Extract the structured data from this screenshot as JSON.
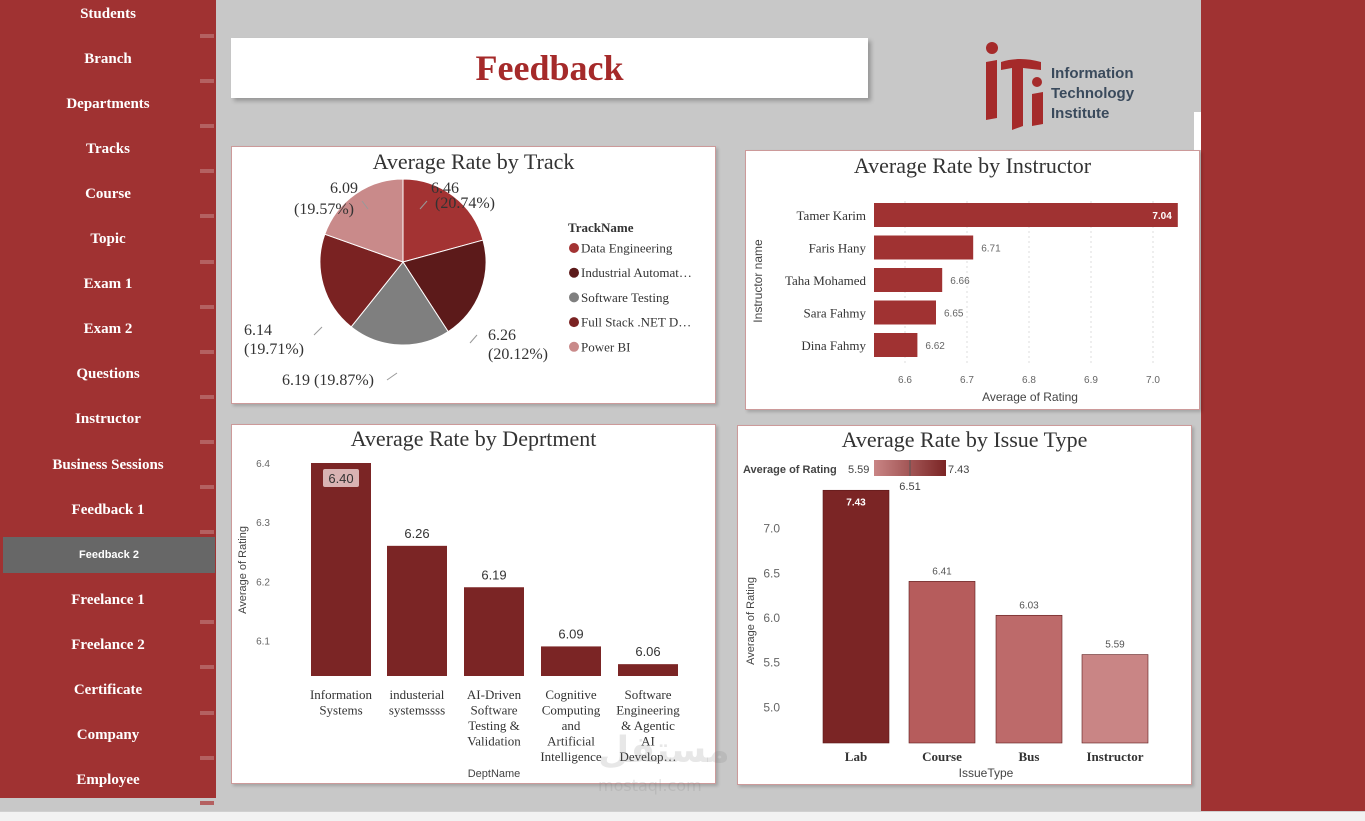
{
  "sidebar": {
    "items": [
      {
        "label": "Students"
      },
      {
        "label": "Branch"
      },
      {
        "label": "Departments"
      },
      {
        "label": "Tracks"
      },
      {
        "label": "Course"
      },
      {
        "label": "Topic"
      },
      {
        "label": "Exam 1"
      },
      {
        "label": "Exam 2"
      },
      {
        "label": "Questions"
      },
      {
        "label": "Instructor"
      },
      {
        "label": "Business Sessions"
      },
      {
        "label": "Feedback 1"
      },
      {
        "label": "Feedback 2",
        "active": true
      },
      {
        "label": "Freelance 1"
      },
      {
        "label": "Freelance 2"
      },
      {
        "label": "Certificate"
      },
      {
        "label": "Company"
      },
      {
        "label": "Employee"
      }
    ]
  },
  "header": {
    "title": "Feedback"
  },
  "logo": {
    "line1": "Information",
    "line2": "Technology",
    "line3": "Institute"
  },
  "colors": {
    "brand": "#a03232",
    "dark_red": "#7b2525",
    "accent": "#a52a2a"
  },
  "chart_data": [
    {
      "type": "pie",
      "title": "Average Rate by Track",
      "legend_title": "TrackName",
      "legend_position": "right",
      "slices": [
        {
          "name": "Data Engineering",
          "legend_label": "Data Engineering",
          "value": 6.46,
          "label": "6.46",
          "pct": "(20.74%)",
          "color": "#a33333"
        },
        {
          "name": "Industrial Automation",
          "legend_label": "Industrial Automat…",
          "value": 6.26,
          "label": "6.26",
          "pct": "(20.12%)",
          "color": "#5c1a1a"
        },
        {
          "name": "Software Testing",
          "legend_label": "Software Testing",
          "value": 6.19,
          "label": "6.19 (19.87%)",
          "pct": "",
          "color": "#7f7f7f"
        },
        {
          "name": "Full Stack .NET D...",
          "legend_label": "Full Stack .NET D…",
          "value": 6.14,
          "label": "6.14",
          "pct": "(19.71%)",
          "color": "#7a2222"
        },
        {
          "name": "Power BI",
          "legend_label": "Power BI",
          "value": 6.09,
          "label": "6.09",
          "pct": "(19.57%)",
          "color": "#c98a8a"
        }
      ]
    },
    {
      "type": "bar",
      "orientation": "horizontal",
      "title": "Average Rate by Instructor",
      "ylabel": "Instructor name",
      "xlabel": "Average of Rating",
      "xlim": [
        6.55,
        7.05
      ],
      "xticks": [
        "6.6",
        "6.7",
        "6.8",
        "6.9",
        "7.0"
      ],
      "xtick_values": [
        6.6,
        6.7,
        6.8,
        6.9,
        7.0
      ],
      "categories": [
        "Tamer Karim",
        "Faris Hany",
        "Taha Mohamed",
        "Sara Fahmy",
        "Dina Fahmy"
      ],
      "values": [
        7.04,
        6.71,
        6.66,
        6.65,
        6.62
      ],
      "labels": [
        "7.04",
        "6.71",
        "6.66",
        "6.65",
        "6.62"
      ],
      "color": "#a03232"
    },
    {
      "type": "bar",
      "title": "Average Rate by Deprtment",
      "ylabel": "Average of Rating",
      "xlabel": "DeptName",
      "ylim": [
        6.04,
        6.4
      ],
      "yticks": [
        "6.1",
        "6.2",
        "6.3",
        "6.4"
      ],
      "ytick_values": [
        6.1,
        6.2,
        6.3,
        6.4
      ],
      "categories": [
        "Information Systems",
        "industerial systemssss",
        "AI-Driven Software Testing & Validation",
        "Cognitive Computing and Artificial Intelligence",
        "Software Engineering & Agentic AI Develop…"
      ],
      "category_lines": [
        [
          "Information",
          "Systems"
        ],
        [
          "industerial",
          "systemssss"
        ],
        [
          "AI-Driven",
          "Software",
          "Testing &",
          "Validation"
        ],
        [
          "Cognitive",
          "Computing",
          "and",
          "Artificial",
          "Intelligence"
        ],
        [
          "Software",
          "Engineering",
          "& Agentic",
          "AI",
          "Develop…"
        ]
      ],
      "values": [
        6.4,
        6.26,
        6.19,
        6.09,
        6.06
      ],
      "labels": [
        "6.40",
        "6.26",
        "6.19",
        "6.09",
        "6.06"
      ],
      "color": "#7b2525"
    },
    {
      "type": "bar",
      "title": "Average Rate by Issue Type",
      "ylabel": "Average of Rating",
      "xlabel": "IssueType",
      "gradient_legend": {
        "label": "Average of Rating",
        "min": "5.59",
        "max": "7.43",
        "mid": "6.51"
      },
      "ylim": [
        4.6,
        7.5
      ],
      "yticks": [
        "5.0",
        "5.5",
        "6.0",
        "6.5",
        "7.0"
      ],
      "ytick_values": [
        5.0,
        5.5,
        6.0,
        6.5,
        7.0
      ],
      "categories": [
        "Lab",
        "Course",
        "Bus",
        "Instructor"
      ],
      "values": [
        7.43,
        6.41,
        6.03,
        5.59
      ],
      "labels": [
        "7.43",
        "6.41",
        "6.03",
        "5.59"
      ],
      "colors": [
        "#7b2525",
        "#b65c5c",
        "#bd6a6a",
        "#c98585"
      ]
    }
  ],
  "watermark": {
    "text": "مستقل",
    "sub": "mostaql.com"
  }
}
